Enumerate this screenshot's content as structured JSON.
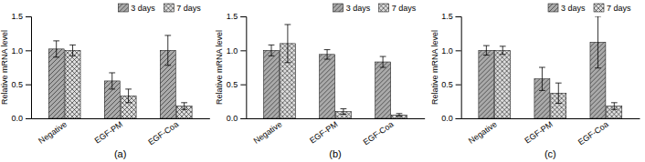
{
  "chart_data": [
    {
      "type": "bar",
      "xlabel": "(a)",
      "ylabel": "Relative mRNA level",
      "categories": [
        "Negative",
        "EGF-PM",
        "EGF-Coa"
      ],
      "series": [
        {
          "name": "3 days",
          "color": "#aaaaaa",
          "values": [
            1.02,
            0.55,
            1.0
          ],
          "errors": [
            0.12,
            0.12,
            0.22
          ]
        },
        {
          "name": "7 days",
          "color": "#dddddd",
          "values": [
            1.0,
            0.33,
            0.18
          ],
          "errors": [
            0.08,
            0.1,
            0.05
          ]
        }
      ],
      "ylim": [
        0,
        1.5
      ],
      "yticks": [
        {
          "value": 0,
          "label": "0.0"
        },
        0.5,
        {
          "value": 1,
          "label": "1.0"
        },
        1.5
      ],
      "legend": "upper right"
    },
    {
      "type": "bar",
      "xlabel": "(b)",
      "ylabel": "Relative mRNA level",
      "categories": [
        "Negative",
        "EGF-PM",
        "EGF-Coa"
      ],
      "series": [
        {
          "name": "3 days",
          "color": "#aaaaaa",
          "values": [
            1.0,
            0.94,
            0.83
          ],
          "errors": [
            0.08,
            0.07,
            0.08
          ]
        },
        {
          "name": "7 days",
          "color": "#dddddd",
          "values": [
            1.1,
            0.1,
            0.05
          ],
          "errors": [
            0.28,
            0.04,
            0.02
          ]
        }
      ],
      "ylim": [
        0,
        1.5
      ],
      "yticks": [
        {
          "value": 0,
          "label": "0.0"
        },
        0.5,
        {
          "value": 1,
          "label": "1.0"
        },
        1.5
      ],
      "legend": "upper right"
    },
    {
      "type": "bar",
      "xlabel": "(c)",
      "ylabel": "Relative mRNA level",
      "categories": [
        "Negative",
        "EGF-PM",
        "EGF-Coa"
      ],
      "series": [
        {
          "name": "3 days",
          "color": "#aaaaaa",
          "values": [
            1.0,
            0.58,
            1.12
          ],
          "errors": [
            0.07,
            0.17,
            0.38
          ]
        },
        {
          "name": "7 days",
          "color": "#dddddd",
          "values": [
            1.0,
            0.37,
            0.18
          ],
          "errors": [
            0.06,
            0.15,
            0.05
          ]
        }
      ],
      "ylim": [
        0,
        1.5
      ],
      "yticks": [
        {
          "value": 0,
          "label": "0.0"
        },
        0.5,
        {
          "value": 1,
          "label": "1.0"
        },
        1.5
      ],
      "legend": "upper right"
    }
  ]
}
